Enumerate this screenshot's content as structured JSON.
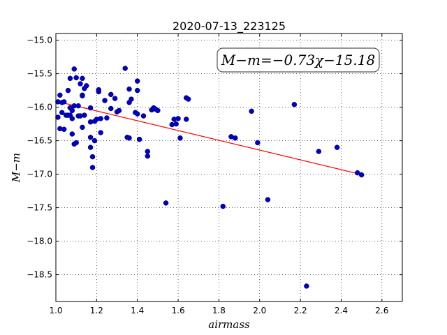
{
  "chart_data": {
    "type": "scatter",
    "title": "2020-07-13_223125",
    "xlabel": "airmass",
    "ylabel": "M−m",
    "xlim": [
      1.0,
      2.7
    ],
    "ylim": [
      -14.9,
      -18.9
    ],
    "y_inverted": true,
    "xticks": [
      "1.0",
      "1.2",
      "1.4",
      "1.6",
      "1.8",
      "2.0",
      "2.2",
      "2.4",
      "2.6"
    ],
    "yticks": [
      "−15.0",
      "−15.5",
      "−16.0",
      "−16.5",
      "−17.0",
      "−17.5",
      "−18.0",
      "−18.5"
    ],
    "grid": true,
    "annotation": "M−m=−0.73χ−15.18",
    "fit": {
      "slope": -0.73,
      "intercept": -15.18,
      "x_range": [
        1.0,
        2.48
      ],
      "color": "#ff0000"
    },
    "marker_color": "#0000cc",
    "points": [
      [
        1.01,
        -15.92
      ],
      [
        1.01,
        -16.15
      ],
      [
        1.02,
        -15.82
      ],
      [
        1.02,
        -16.32
      ],
      [
        1.03,
        -15.93
      ],
      [
        1.03,
        -16.08
      ],
      [
        1.04,
        -15.92
      ],
      [
        1.04,
        -16.33
      ],
      [
        1.05,
        -16.12
      ],
      [
        1.06,
        -16.12
      ],
      [
        1.06,
        -15.75
      ],
      [
        1.07,
        -15.57
      ],
      [
        1.07,
        -16.01
      ],
      [
        1.07,
        -16.12
      ],
      [
        1.08,
        -16.05
      ],
      [
        1.08,
        -16.17
      ],
      [
        1.08,
        -16.4
      ],
      [
        1.09,
        -16.55
      ],
      [
        1.09,
        -15.98
      ],
      [
        1.09,
        -15.43
      ],
      [
        1.1,
        -16.53
      ],
      [
        1.1,
        -15.56
      ],
      [
        1.11,
        -15.98
      ],
      [
        1.11,
        -16.13
      ],
      [
        1.12,
        -15.65
      ],
      [
        1.12,
        -16.13
      ],
      [
        1.13,
        -15.82
      ],
      [
        1.13,
        -15.83
      ],
      [
        1.13,
        -16.3
      ],
      [
        1.13,
        -15.57
      ],
      [
        1.14,
        -16.12
      ],
      [
        1.14,
        -15.72
      ],
      [
        1.15,
        -15.68
      ],
      [
        1.17,
        -16.22
      ],
      [
        1.17,
        -16.45
      ],
      [
        1.17,
        -16.6
      ],
      [
        1.17,
        -16.01
      ],
      [
        1.18,
        -16.74
      ],
      [
        1.18,
        -16.9
      ],
      [
        1.19,
        -16.21
      ],
      [
        1.19,
        -16.5
      ],
      [
        1.2,
        -16.18
      ],
      [
        1.21,
        -15.77
      ],
      [
        1.21,
        -15.74
      ],
      [
        1.22,
        -16.38
      ],
      [
        1.22,
        -16.17
      ],
      [
        1.24,
        -15.9
      ],
      [
        1.25,
        -16.16
      ],
      [
        1.27,
        -16.02
      ],
      [
        1.27,
        -15.81
      ],
      [
        1.29,
        -15.87
      ],
      [
        1.3,
        -16.07
      ],
      [
        1.31,
        -16.05
      ],
      [
        1.34,
        -15.42
      ],
      [
        1.35,
        -16.45
      ],
      [
        1.36,
        -15.93
      ],
      [
        1.36,
        -16.46
      ],
      [
        1.36,
        -15.73
      ],
      [
        1.37,
        -15.88
      ],
      [
        1.39,
        -16.08
      ],
      [
        1.4,
        -16.1
      ],
      [
        1.4,
        -15.61
      ],
      [
        1.4,
        -15.75
      ],
      [
        1.41,
        -16.48
      ],
      [
        1.43,
        -16.13
      ],
      [
        1.45,
        -16.66
      ],
      [
        1.45,
        -16.73
      ],
      [
        1.47,
        -16.04
      ],
      [
        1.48,
        -16.01
      ],
      [
        1.49,
        -16.03
      ],
      [
        1.5,
        -16.05
      ],
      [
        1.54,
        -17.43
      ],
      [
        1.57,
        -16.26
      ],
      [
        1.58,
        -16.18
      ],
      [
        1.59,
        -16.25
      ],
      [
        1.6,
        -16.17
      ],
      [
        1.61,
        -16.46
      ],
      [
        1.64,
        -16.18
      ],
      [
        1.64,
        -15.86
      ],
      [
        1.65,
        -15.88
      ],
      [
        1.82,
        -17.48
      ],
      [
        1.86,
        -16.44
      ],
      [
        1.88,
        -16.46
      ],
      [
        1.96,
        -16.06
      ],
      [
        1.99,
        -16.53
      ],
      [
        2.04,
        -17.38
      ],
      [
        2.17,
        -15.96
      ],
      [
        2.23,
        -18.67
      ],
      [
        2.29,
        -16.66
      ],
      [
        2.38,
        -16.6
      ],
      [
        2.48,
        -16.98
      ],
      [
        2.5,
        -17.01
      ]
    ]
  }
}
